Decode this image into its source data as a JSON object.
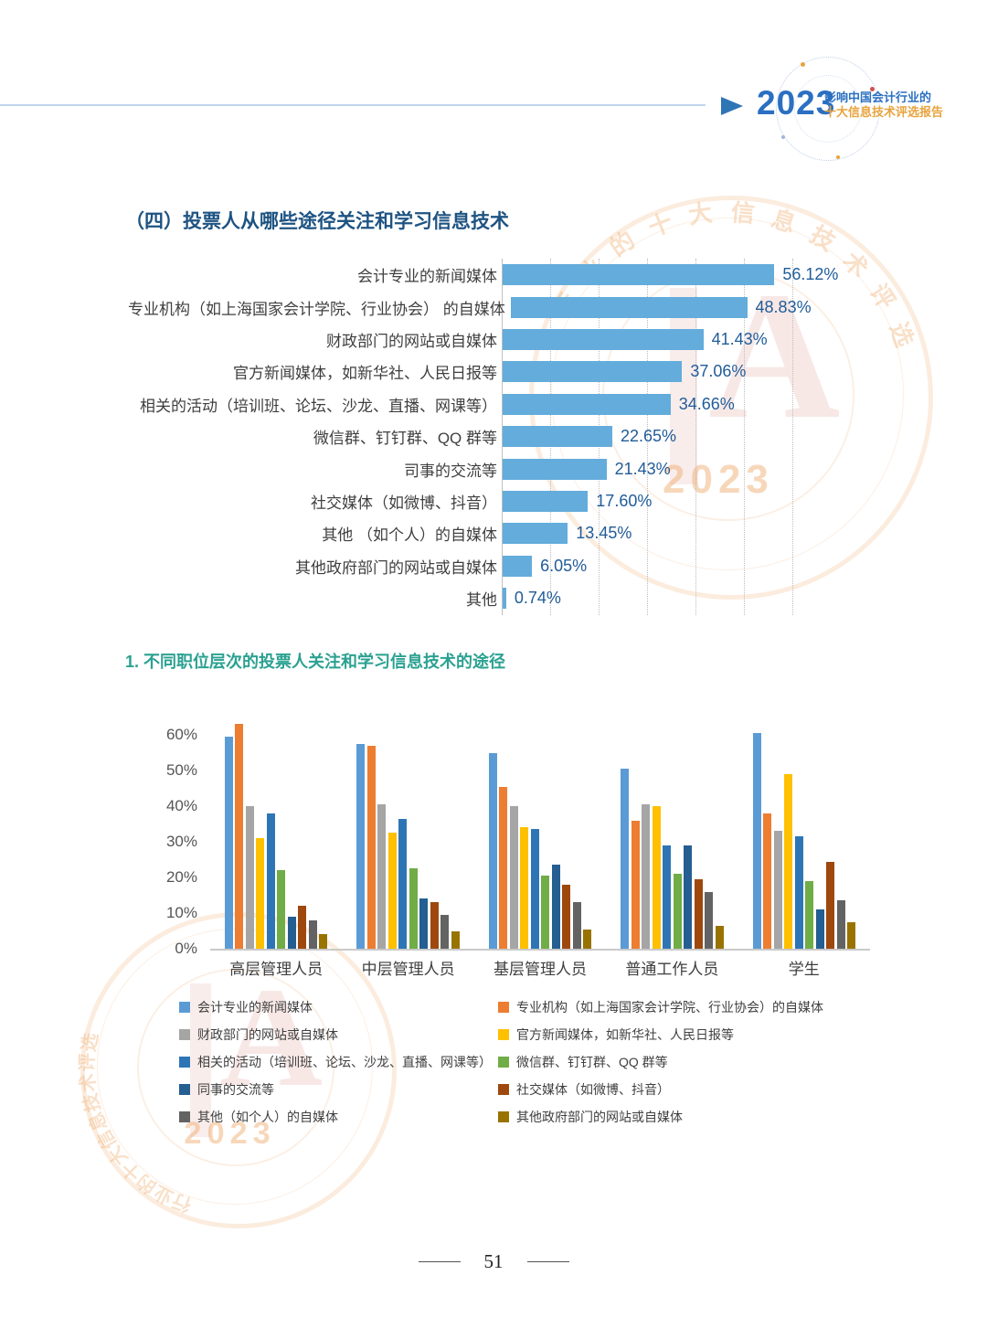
{
  "header": {
    "year": "2023",
    "title_line1": "影响中国会计行业的",
    "title_line2": "十大信息技术评选报告",
    "accent_blue": "#2B6FC2",
    "accent_orange": "#E8A33D"
  },
  "section": {
    "title": "（四）投票人从哪些途径关注和学习信息技术"
  },
  "subsection": {
    "title": "1. 不同职位层次的投票人关注和学习信息技术的途径"
  },
  "watermark": {
    "year": "2023",
    "arc_text": "行业的十大信息技术评选",
    "ring_color": "#EFA868",
    "emblem_color": "#C04A3E"
  },
  "footer": {
    "page_number": "51"
  },
  "chart_data": [
    {
      "type": "bar",
      "orientation": "horizontal",
      "title": "",
      "categories": [
        "会计专业的新闻媒体",
        "专业机构（如上海国家会计学院、行业协会） 的自媒体",
        "财政部门的网站或自媒体",
        "官方新闻媒体，如新华社、人民日报等",
        "相关的活动（培训班、论坛、沙龙、直播、网课等）",
        "微信群、钉钉群、QQ 群等",
        "司事的交流等",
        "社交媒体（如微博、抖音）",
        "其他 （如个人）的自媒体",
        "其他政府部门的网站或自媒体",
        "其他"
      ],
      "values": [
        56.12,
        48.83,
        41.43,
        37.06,
        34.66,
        22.65,
        21.43,
        17.6,
        13.45,
        6.05,
        0.74
      ],
      "value_labels": [
        "56.12%",
        "48.83%",
        "41.43%",
        "37.06%",
        "34.66%",
        "22.65%",
        "21.43%",
        "17.60%",
        "13.45%",
        "6.05%",
        "0.74%"
      ],
      "xlim": [
        0,
        60
      ],
      "grid_pcts": [
        10,
        20,
        30,
        40,
        50,
        60
      ],
      "bar_color": "#63ACDC",
      "grid": "dotted-vertical",
      "legend_position": "none"
    },
    {
      "type": "bar",
      "orientation": "vertical-grouped",
      "title": "",
      "categories": [
        "高层管理人员",
        "中层管理人员",
        "基层管理人员",
        "普通工作人员",
        "学生"
      ],
      "ylim": [
        0,
        60
      ],
      "yticks": [
        "60%",
        "50%",
        "40%",
        "30%",
        "20%",
        "10%",
        "0%"
      ],
      "ytick_values": [
        60,
        50,
        40,
        30,
        20,
        10,
        0
      ],
      "grid": "off",
      "legend_position": "bottom-two-columns",
      "legend_columns": [
        [
          0,
          2,
          4,
          6,
          8
        ],
        [
          1,
          3,
          5,
          7,
          9
        ]
      ],
      "series": [
        {
          "name": "会计专业的新闻媒体",
          "color": "#5B9BD5",
          "values": [
            59.5,
            57.5,
            55,
            50.5,
            60.5
          ]
        },
        {
          "name": "专业机构（如上海国家会计学院、行业协会）的自媒体",
          "color": "#ED7D31",
          "values": [
            63,
            57,
            45.5,
            36,
            38
          ]
        },
        {
          "name": "财政部门的网站或自媒体",
          "color": "#A5A5A5",
          "values": [
            40,
            40.5,
            40,
            40.5,
            33
          ]
        },
        {
          "name": "官方新闻媒体，如新华社、人民日报等",
          "color": "#FFC000",
          "values": [
            31,
            32.5,
            34,
            40,
            49
          ]
        },
        {
          "name": "相关的活动（培训班、论坛、沙龙、直播、网课等）",
          "color": "#2E75B6",
          "values": [
            38,
            36.5,
            33.5,
            29,
            31.5
          ]
        },
        {
          "name": "微信群、钉钉群、QQ 群等",
          "color": "#70AD47",
          "values": [
            22,
            22.5,
            20.5,
            21,
            19
          ]
        },
        {
          "name": "同事的交流等",
          "color": "#255E91",
          "values": [
            9,
            14,
            23.5,
            29,
            11
          ]
        },
        {
          "name": "社交媒体（如微博、抖音）",
          "color": "#9E480E",
          "values": [
            12,
            13,
            18,
            19.5,
            24.5
          ]
        },
        {
          "name": "其他（如个人）的自媒体",
          "color": "#636363",
          "values": [
            8,
            9.5,
            13,
            16,
            13.5
          ]
        },
        {
          "name": "其他政府部门的网站或自媒体",
          "color": "#997300",
          "values": [
            4,
            5,
            5.5,
            6.5,
            7.5
          ]
        }
      ]
    }
  ]
}
